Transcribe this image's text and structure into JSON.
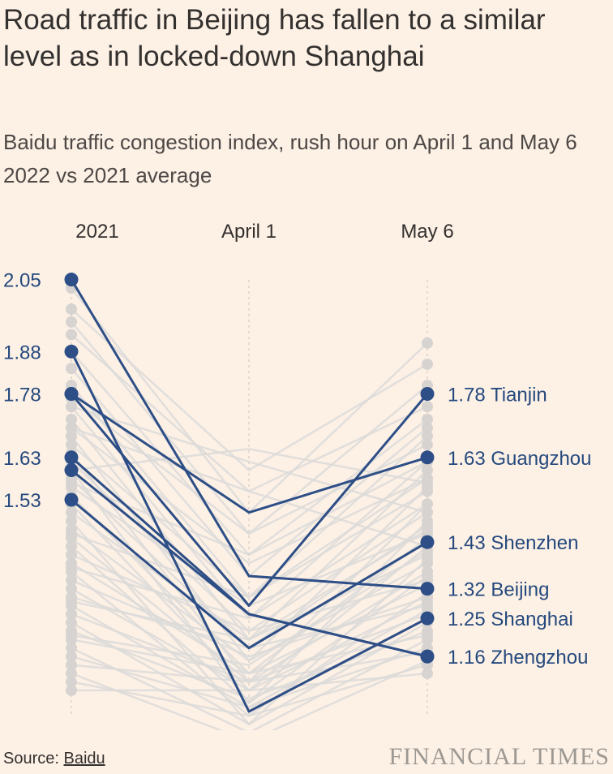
{
  "title": "Road traffic in Beijing has fallen to a similar level as in locked-down Shanghai",
  "subtitle": "Baidu traffic congestion index, rush hour on April 1 and May 6 2022 vs 2021 average",
  "source": {
    "prefix": "Source: ",
    "link": "Baidu"
  },
  "brand": "FINANCIAL TIMES",
  "colors": {
    "highlight": "#2d4e86",
    "background_lines": "#dcdad8",
    "background": "#fdf1e6"
  },
  "chart_data": {
    "type": "line",
    "x": [
      "2021",
      "April 1",
      "May 6"
    ],
    "y_tick_labels": [
      "2.05",
      "1.88",
      "1.78",
      "1.63",
      "1.53"
    ],
    "highlighted_series": [
      {
        "name": "Tianjin",
        "values": [
          1.78,
          1.28,
          1.78
        ],
        "label": "1.78 Tianjin"
      },
      {
        "name": "Guangzhou",
        "values": [
          1.78,
          1.5,
          1.63
        ],
        "label": "1.63 Guangzhou"
      },
      {
        "name": "Shenzhen",
        "values": [
          1.53,
          1.18,
          1.43
        ],
        "label": "1.43 Shenzhen"
      },
      {
        "name": "Beijing",
        "values": [
          2.05,
          1.35,
          1.32
        ],
        "label": "1.32 Beijing"
      },
      {
        "name": "Shanghai",
        "values": [
          1.88,
          1.03,
          1.25
        ],
        "label": "1.25 Shanghai"
      },
      {
        "name": "Zhengzhou",
        "values": [
          1.63,
          1.26,
          1.16
        ],
        "label": "1.16 Zhengzhou"
      },
      {
        "name": "",
        "values": [
          1.6,
          1.26,
          1.16
        ],
        "label": ""
      }
    ],
    "background_series": [
      [
        2.03,
        1.5,
        1.9
      ],
      [
        1.98,
        1.6,
        1.85
      ],
      [
        1.95,
        1.45,
        1.8
      ],
      [
        1.92,
        1.55,
        1.75
      ],
      [
        1.88,
        1.4,
        1.72
      ],
      [
        1.84,
        1.35,
        1.7
      ],
      [
        1.8,
        1.3,
        1.68
      ],
      [
        1.77,
        1.45,
        1.66
      ],
      [
        1.75,
        1.25,
        1.62
      ],
      [
        1.72,
        1.2,
        1.6
      ],
      [
        1.7,
        1.38,
        1.58
      ],
      [
        1.68,
        1.15,
        1.56
      ],
      [
        1.66,
        1.3,
        1.55
      ],
      [
        1.64,
        1.1,
        1.52
      ],
      [
        1.62,
        1.22,
        1.5
      ],
      [
        1.6,
        1.05,
        1.48
      ],
      [
        1.58,
        1.18,
        1.47
      ],
      [
        1.56,
        1.28,
        1.45
      ],
      [
        1.54,
        1.12,
        1.44
      ],
      [
        1.52,
        1.08,
        1.42
      ],
      [
        1.5,
        1.2,
        1.4
      ],
      [
        1.48,
        1.0,
        1.39
      ],
      [
        1.46,
        1.15,
        1.38
      ],
      [
        1.44,
        1.1,
        1.36
      ],
      [
        1.42,
        1.05,
        1.35
      ],
      [
        1.4,
        1.22,
        1.34
      ],
      [
        1.38,
        1.12,
        1.33
      ],
      [
        1.36,
        1.02,
        1.31
      ],
      [
        1.34,
        1.16,
        1.3
      ],
      [
        1.32,
        1.08,
        1.29
      ],
      [
        1.3,
        1.18,
        1.28
      ],
      [
        1.28,
        1.04,
        1.27
      ],
      [
        1.26,
        1.1,
        1.26
      ],
      [
        1.24,
        1.0,
        1.24
      ],
      [
        1.22,
        1.06,
        1.22
      ],
      [
        1.2,
        1.12,
        1.21
      ],
      [
        1.18,
        0.98,
        1.2
      ],
      [
        1.16,
        1.04,
        1.18
      ],
      [
        1.14,
        1.1,
        1.17
      ],
      [
        1.12,
        0.96,
        1.15
      ],
      [
        1.1,
        1.02,
        1.14
      ],
      [
        1.08,
        1.08,
        1.12
      ],
      [
        1.75,
        1.62,
        1.5
      ],
      [
        1.7,
        1.55,
        1.42
      ],
      [
        1.6,
        1.65,
        1.57
      ],
      [
        1.57,
        1.4,
        1.62
      ],
      [
        1.45,
        1.3,
        1.58
      ],
      [
        1.37,
        1.25,
        1.52
      ],
      [
        1.29,
        1.2,
        1.46
      ],
      [
        1.21,
        1.14,
        1.41
      ]
    ],
    "ylim": [
      0.95,
      2.1
    ]
  }
}
